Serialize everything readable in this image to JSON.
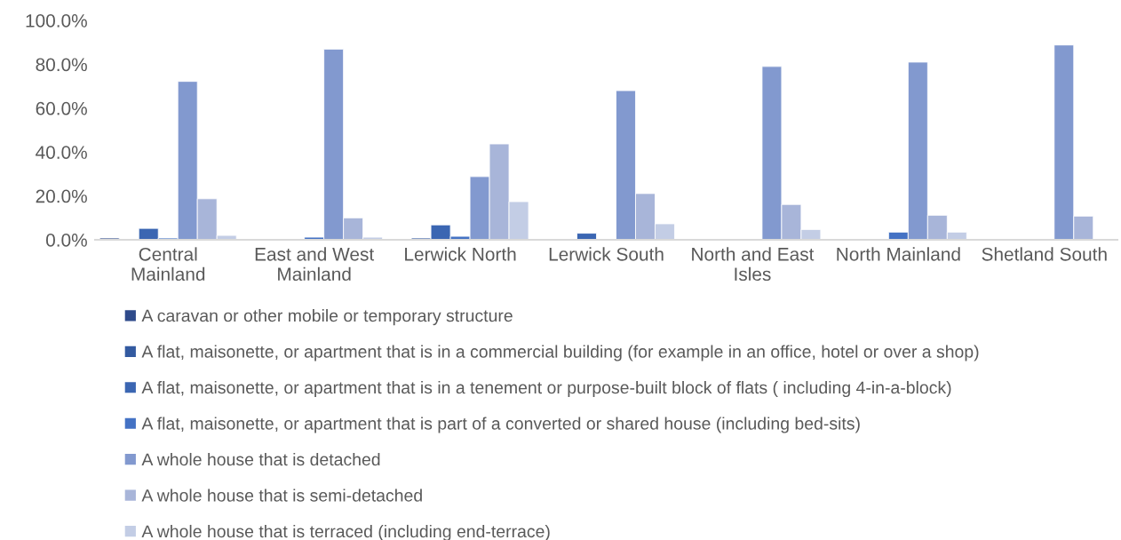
{
  "chart_data": {
    "type": "bar",
    "categories": [
      "Central Mainland",
      "East and West Mainland",
      "Lerwick North",
      "Lerwick South",
      "North and East Isles",
      "North Mainland",
      "Shetland South"
    ],
    "series": [
      {
        "name": "A caravan or other mobile or temporary structure",
        "color": "#2e4a8a",
        "values": [
          0.8,
          null,
          null,
          null,
          null,
          null,
          null
        ]
      },
      {
        "name": "A flat, maisonette, or apartment that is in a commercial building (for example in an office, hotel or over a shop)",
        "color": "#335aa0",
        "values": [
          null,
          null,
          0.8,
          null,
          null,
          null,
          null
        ]
      },
      {
        "name": "A flat, maisonette, or apartment that is in a tenement or purpose-built block of flats ( including 4-in-a-block)",
        "color": "#3b66b2",
        "values": [
          5.2,
          null,
          6.8,
          3.0,
          null,
          null,
          null
        ]
      },
      {
        "name": "A flat, maisonette, or apartment that is part of a converted or shared house (including bed-sits)",
        "color": "#4472c4",
        "values": [
          0.8,
          1.2,
          1.6,
          null,
          null,
          3.5,
          null
        ]
      },
      {
        "name": "A whole house that is detached",
        "color": "#8299cf",
        "values": [
          72.2,
          86.9,
          28.8,
          68.0,
          79.0,
          81.0,
          88.8
        ]
      },
      {
        "name": "A whole house that is semi-detached",
        "color": "#a8b5d9",
        "values": [
          18.7,
          10.0,
          43.7,
          21.1,
          16.1,
          11.2,
          10.8
        ]
      },
      {
        "name": "A whole house that is terraced (including end-terrace)",
        "color": "#c3cde5",
        "values": [
          2.0,
          1.2,
          17.4,
          7.3,
          4.7,
          3.5,
          null
        ]
      }
    ],
    "ylim": [
      0,
      100
    ],
    "yticks": [
      {
        "value": 0,
        "label": "0.0%"
      },
      {
        "value": 20,
        "label": "20.0%"
      },
      {
        "value": 40,
        "label": "40.0%"
      },
      {
        "value": 60,
        "label": "60.0%"
      },
      {
        "value": 80,
        "label": "80.0%"
      },
      {
        "value": 100,
        "label": "100.0%"
      }
    ],
    "grid": false,
    "legend": "bottom"
  }
}
